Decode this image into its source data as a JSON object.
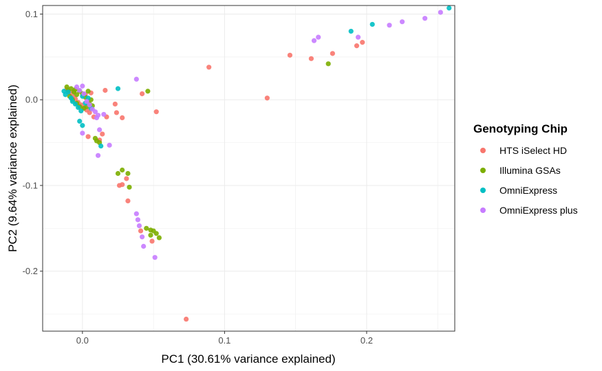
{
  "chart_data": {
    "type": "scatter",
    "xlabel": "PC1 (30.61% variance explained)",
    "ylabel": "PC2 (9.64% variance explained)",
    "xlim": [
      -0.028,
      0.262
    ],
    "ylim": [
      -0.27,
      0.11
    ],
    "x_ticks": [
      0.0,
      0.1,
      0.2
    ],
    "x_tick_labels": [
      "0.0",
      "0.1",
      "0.2"
    ],
    "y_ticks": [
      0.1,
      0.0,
      -0.1,
      -0.2
    ],
    "y_tick_labels": [
      "0.1",
      "0.0",
      "-0.1",
      "-0.2"
    ],
    "grid": true,
    "legend": {
      "title": "Genotyping Chip",
      "placement": "right"
    },
    "series": [
      {
        "name": "HTS iSelect HD",
        "color": "#F8766D",
        "points": [
          [
            -0.011,
            0.012
          ],
          [
            -0.009,
            0.008
          ],
          [
            -0.007,
            0.004
          ],
          [
            -0.005,
            0.001
          ],
          [
            -0.003,
            -0.003
          ],
          [
            -0.001,
            -0.006
          ],
          [
            0.001,
            -0.009
          ],
          [
            0.003,
            -0.012
          ],
          [
            0.005,
            -0.015
          ],
          [
            -0.006,
            0.01
          ],
          [
            0.002,
            0.006
          ],
          [
            0.006,
            0.008
          ],
          [
            0.004,
            -0.004
          ],
          [
            0.008,
            -0.02
          ],
          [
            0.004,
            -0.043
          ],
          [
            0.012,
            -0.047
          ],
          [
            0.014,
            -0.04
          ],
          [
            0.016,
            0.011
          ],
          [
            0.017,
            -0.02
          ],
          [
            0.023,
            -0.005
          ],
          [
            0.024,
            -0.015
          ],
          [
            0.028,
            -0.021
          ],
          [
            0.026,
            -0.1
          ],
          [
            0.028,
            -0.099
          ],
          [
            0.031,
            -0.092
          ],
          [
            0.032,
            -0.118
          ],
          [
            0.041,
            -0.153
          ],
          [
            0.049,
            -0.165
          ],
          [
            0.042,
            0.007
          ],
          [
            0.052,
            -0.014
          ],
          [
            0.073,
            -0.256
          ],
          [
            0.089,
            0.038
          ],
          [
            0.13,
            0.002
          ],
          [
            0.146,
            0.052
          ],
          [
            0.161,
            0.048
          ],
          [
            0.176,
            0.054
          ],
          [
            0.193,
            0.063
          ],
          [
            0.197,
            0.067
          ]
        ]
      },
      {
        "name": "Illumina GSAs",
        "color": "#7CAE00",
        "points": [
          [
            -0.011,
            0.015
          ],
          [
            -0.01,
            0.011
          ],
          [
            -0.008,
            0.013
          ],
          [
            -0.006,
            0.009
          ],
          [
            -0.005,
            0.012
          ],
          [
            -0.004,
            0.006
          ],
          [
            -0.002,
            0.01
          ],
          [
            0.0,
            0.007
          ],
          [
            0.002,
            0.003
          ],
          [
            -0.009,
            0.004
          ],
          [
            -0.007,
            0.0
          ],
          [
            -0.004,
            -0.004
          ],
          [
            -0.002,
            -0.008
          ],
          [
            0.001,
            -0.01
          ],
          [
            0.003,
            -0.008
          ],
          [
            0.005,
            -0.005
          ],
          [
            0.007,
            -0.007
          ],
          [
            0.006,
            0.0
          ],
          [
            0.004,
            0.01
          ],
          [
            0.009,
            -0.045
          ],
          [
            0.012,
            -0.05
          ],
          [
            0.01,
            -0.048
          ],
          [
            0.025,
            -0.086
          ],
          [
            0.028,
            -0.082
          ],
          [
            0.032,
            -0.086
          ],
          [
            0.033,
            -0.102
          ],
          [
            0.046,
            0.01
          ],
          [
            0.045,
            -0.15
          ],
          [
            0.048,
            -0.152
          ],
          [
            0.05,
            -0.153
          ],
          [
            0.052,
            -0.156
          ],
          [
            0.054,
            -0.161
          ],
          [
            0.048,
            -0.158
          ],
          [
            0.173,
            0.042
          ]
        ]
      },
      {
        "name": "OmniExpress",
        "color": "#00BFC4",
        "points": [
          [
            -0.013,
            0.01
          ],
          [
            -0.012,
            0.006
          ],
          [
            -0.01,
            0.009
          ],
          [
            -0.008,
            0.002
          ],
          [
            -0.007,
            -0.002
          ],
          [
            -0.005,
            -0.005
          ],
          [
            -0.003,
            -0.009
          ],
          [
            -0.001,
            -0.013
          ],
          [
            0.0,
            0.004
          ],
          [
            0.002,
            -0.004
          ],
          [
            0.004,
            0.002
          ],
          [
            0.006,
            -0.01
          ],
          [
            -0.002,
            -0.025
          ],
          [
            0.0,
            -0.03
          ],
          [
            0.013,
            -0.054
          ],
          [
            0.025,
            0.013
          ],
          [
            0.189,
            0.08
          ],
          [
            0.204,
            0.088
          ],
          [
            0.258,
            0.107
          ]
        ]
      },
      {
        "name": "OmniExpress plus",
        "color": "#C77CFF",
        "points": [
          [
            -0.004,
            0.015
          ],
          [
            -0.002,
            0.011
          ],
          [
            0.0,
            0.016
          ],
          [
            0.001,
            0.007
          ],
          [
            0.003,
            -0.002
          ],
          [
            0.005,
            -0.006
          ],
          [
            0.007,
            -0.011
          ],
          [
            0.009,
            -0.014
          ],
          [
            0.01,
            -0.021
          ],
          [
            0.011,
            -0.018
          ],
          [
            0.012,
            -0.035
          ],
          [
            0.015,
            -0.017
          ],
          [
            0.019,
            -0.053
          ],
          [
            0.011,
            -0.065
          ],
          [
            0.0,
            -0.039
          ],
          [
            0.038,
            0.024
          ],
          [
            0.038,
            -0.133
          ],
          [
            0.039,
            -0.14
          ],
          [
            0.04,
            -0.147
          ],
          [
            0.042,
            -0.16
          ],
          [
            0.043,
            -0.171
          ],
          [
            0.051,
            -0.184
          ],
          [
            0.163,
            0.069
          ],
          [
            0.166,
            0.073
          ],
          [
            0.194,
            0.073
          ],
          [
            0.216,
            0.087
          ],
          [
            0.225,
            0.091
          ],
          [
            0.241,
            0.095
          ],
          [
            0.252,
            0.102
          ]
        ]
      }
    ]
  }
}
